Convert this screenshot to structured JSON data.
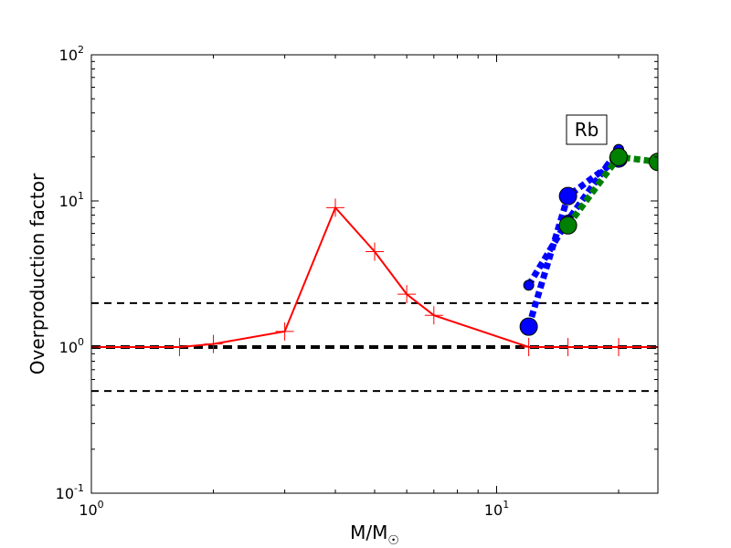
{
  "chart_data": {
    "type": "line",
    "title": "",
    "xlabel": "M/M",
    "xlabel_subscript": "☉",
    "ylabel": "Overproduction factor",
    "xscale": "log",
    "yscale": "log",
    "xlim": [
      1,
      25
    ],
    "ylim": [
      0.1,
      100
    ],
    "grid": false,
    "x_ticks": [
      {
        "value": 1,
        "base": "10",
        "exp": "0"
      },
      {
        "value": 10,
        "base": "10",
        "exp": "1"
      }
    ],
    "y_ticks": [
      {
        "value": 0.1,
        "base": "10",
        "exp": "-1"
      },
      {
        "value": 1,
        "base": "10",
        "exp": "0"
      },
      {
        "value": 10,
        "base": "10",
        "exp": "1"
      },
      {
        "value": 100,
        "base": "10",
        "exp": "2"
      }
    ],
    "annotation": "Rb",
    "reference_lines": [
      {
        "y": 2,
        "style": "dashed",
        "color": "#000000"
      },
      {
        "y": 1,
        "style": "dashed-thick",
        "color": "#000000"
      },
      {
        "y": 0.5,
        "style": "dashed",
        "color": "#000000"
      }
    ],
    "series": [
      {
        "style": "solid-cross",
        "color": "#ff0000",
        "x": [
          1,
          1.65,
          2,
          3,
          4,
          5,
          6,
          7,
          12,
          15,
          20,
          25
        ],
        "y": [
          1,
          1,
          1.05,
          1.28,
          9,
          4.5,
          2.3,
          1.65,
          1,
          1,
          1,
          1
        ]
      },
      {
        "style": "dotted-circle",
        "color": "#0000ff",
        "x": [
          12,
          15,
          20
        ],
        "y": [
          1.38,
          10.8,
          19.5
        ],
        "marker_size": "large"
      },
      {
        "style": "dotted-circle",
        "color": "#0000ff",
        "x": [
          12,
          15,
          20
        ],
        "y": [
          2.65,
          7.4,
          22.5
        ],
        "marker_size": "small"
      },
      {
        "style": "dotted-circle",
        "color": "#008000",
        "x": [
          15,
          20,
          25
        ],
        "y": [
          6.8,
          20,
          18.5
        ],
        "marker_size": "large"
      }
    ]
  }
}
